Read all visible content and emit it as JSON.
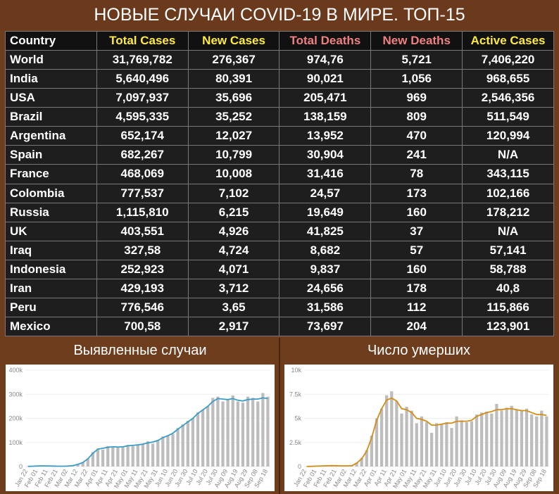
{
  "header": {
    "title": "НОВЫЕ СЛУЧАИ COVID-19 В МИРЕ. ТОП-15"
  },
  "table": {
    "columns": [
      "Country",
      "Total Cases",
      "New Cases",
      "Total Deaths",
      "New Deaths",
      "Active Cases"
    ],
    "rows": [
      [
        "World",
        "31,769,782",
        "276,367",
        "974,76",
        "5,721",
        "7,406,220"
      ],
      [
        "India",
        "5,640,496",
        "80,391",
        "90,021",
        "1,056",
        "968,655"
      ],
      [
        "USA",
        "7,097,937",
        "35,696",
        "205,471",
        "969",
        "2,546,356"
      ],
      [
        "Brazil",
        "4,595,335",
        "35,252",
        "138,159",
        "809",
        "511,549"
      ],
      [
        "Argentina",
        "652,174",
        "12,027",
        "13,952",
        "470",
        "120,994"
      ],
      [
        "Spain",
        "682,267",
        "10,799",
        "30,904",
        "241",
        "N/A"
      ],
      [
        "France",
        "468,069",
        "10,008",
        "31,416",
        "78",
        "343,115"
      ],
      [
        "Colombia",
        "777,537",
        "7,102",
        "24,57",
        "173",
        "102,166"
      ],
      [
        "Russia",
        "1,115,810",
        "6,215",
        "19,649",
        "160",
        "178,212"
      ],
      [
        "UK",
        "403,551",
        "4,926",
        "41,825",
        "37",
        "N/A"
      ],
      [
        "Iraq",
        "327,58",
        "4,724",
        "8,682",
        "57",
        "57,141"
      ],
      [
        "Indonesia",
        "252,923",
        "4,071",
        "9,837",
        "160",
        "58,788"
      ],
      [
        "Iran",
        "429,193",
        "3,712",
        "24,656",
        "178",
        "40,8"
      ],
      [
        "Peru",
        "776,546",
        "3,65",
        "31,586",
        "112",
        "115,866"
      ],
      [
        "Mexico",
        "700,58",
        "2,917",
        "73,697",
        "204",
        "123,901"
      ]
    ]
  },
  "chart_data": [
    {
      "type": "bar",
      "title": "Выявленные случаи",
      "color": "#bdbdbd",
      "line_color": "#3c9cc6",
      "grid": true,
      "categories": [
        "Jan 22",
        null,
        "Feb 01",
        null,
        "Feb 11",
        null,
        "Feb 21",
        null,
        "Mar 02",
        null,
        "Mar 12",
        null,
        "Mar 22",
        null,
        "Apr 01",
        null,
        "Apr 11",
        null,
        "Apr 21",
        null,
        "May 01",
        null,
        "May 11",
        null,
        "May 21",
        null,
        "May 31",
        null,
        "Jun 10",
        null,
        "Jun 20",
        null,
        "Jun 30",
        null,
        "Jul 10",
        null,
        "Jul 20",
        null,
        "Jul 30",
        null,
        "Aug 09",
        null,
        "Aug 19",
        null,
        "Aug 29",
        null,
        "Sep 08",
        null,
        "Sep 18"
      ],
      "values": [
        500,
        2000,
        2500,
        3500,
        2500,
        2000,
        1000,
        1500,
        2000,
        4000,
        10000,
        18000,
        33000,
        60000,
        75000,
        70000,
        85000,
        82000,
        78000,
        80000,
        90000,
        85000,
        88000,
        95000,
        105000,
        95000,
        110000,
        125000,
        130000,
        135000,
        160000,
        175000,
        190000,
        200000,
        225000,
        235000,
        250000,
        285000,
        290000,
        270000,
        280000,
        295000,
        270000,
        265000,
        290000,
        285000,
        270000,
        305000,
        290000
      ],
      "line": [
        500,
        1500,
        2300,
        2800,
        2500,
        2000,
        1500,
        1500,
        2000,
        4000,
        9000,
        17000,
        32000,
        55000,
        72000,
        76000,
        80000,
        82000,
        81000,
        82000,
        86000,
        88000,
        90000,
        93000,
        98000,
        102000,
        108000,
        120000,
        128000,
        138000,
        155000,
        170000,
        185000,
        200000,
        220000,
        235000,
        250000,
        270000,
        282000,
        280000,
        278000,
        282000,
        275000,
        272000,
        278000,
        280000,
        280000,
        285000,
        282000
      ],
      "ylim": [
        0,
        400000
      ],
      "yticks": [
        0,
        {
          "value": 100000,
          "label": "100k"
        },
        {
          "value": 200000,
          "label": "200k"
        },
        {
          "value": 300000,
          "label": "300k"
        },
        {
          "value": 400000,
          "label": "400k"
        }
      ]
    },
    {
      "type": "bar",
      "title": "Число умерших",
      "color": "#bdbdbd",
      "line_color": "#d38d17",
      "grid": true,
      "categories": [
        "Jan 22",
        null,
        "Feb 01",
        null,
        "Feb 11",
        null,
        "Feb 21",
        null,
        "Mar 02",
        null,
        "Mar 12",
        null,
        "Mar 22",
        null,
        "Apr 01",
        null,
        "Apr 11",
        null,
        "Apr 21",
        null,
        "May 01",
        null,
        "May 11",
        null,
        "May 21",
        null,
        "May 31",
        null,
        "Jun 10",
        null,
        "Jun 20",
        null,
        "Jun 30",
        null,
        "Jul 10",
        null,
        "Jul 20",
        null,
        "Jul 30",
        null,
        "Aug 09",
        null,
        "Aug 19",
        null,
        "Aug 29",
        null,
        "Sep 08",
        null,
        "Sep 18"
      ],
      "values": [
        20,
        30,
        50,
        70,
        100,
        100,
        100,
        50,
        70,
        100,
        400,
        900,
        1700,
        3200,
        5000,
        6000,
        7400,
        7800,
        6800,
        5500,
        6200,
        5800,
        4500,
        5200,
        4600,
        3500,
        4500,
        4400,
        4600,
        4000,
        5200,
        4800,
        4600,
        4700,
        5400,
        5600,
        5700,
        5500,
        6500,
        5800,
        6100,
        6300,
        5900,
        5800,
        6000,
        5400,
        5200,
        5800,
        5200
      ],
      "line": [
        10,
        25,
        45,
        60,
        80,
        95,
        90,
        70,
        70,
        90,
        350,
        800,
        1600,
        3000,
        4800,
        6000,
        6900,
        7100,
        6800,
        6000,
        5900,
        5600,
        5000,
        4900,
        4700,
        4300,
        4300,
        4400,
        4500,
        4500,
        4700,
        4700,
        4700,
        4800,
        5200,
        5400,
        5600,
        5700,
        5900,
        5900,
        6000,
        6000,
        5900,
        5800,
        5800,
        5600,
        5400,
        5400,
        5300
      ],
      "ylim": [
        0,
        10000
      ],
      "yticks": [
        0,
        {
          "value": 2500,
          "label": "2.5k"
        },
        {
          "value": 5000,
          "label": "5k"
        },
        {
          "value": 7500,
          "label": "7.5k"
        },
        {
          "value": 10000,
          "label": "10k"
        }
      ]
    }
  ]
}
